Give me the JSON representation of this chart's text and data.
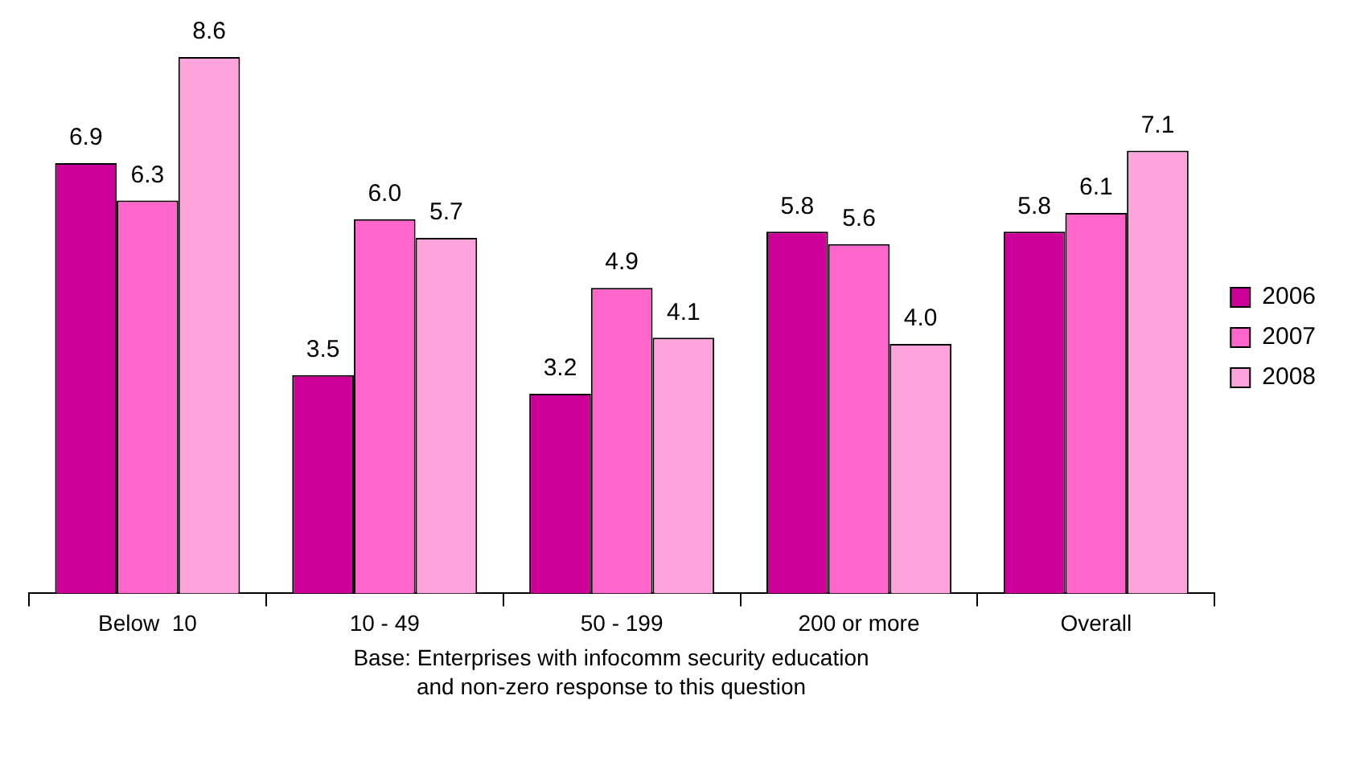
{
  "chart_data": {
    "type": "bar",
    "categories": [
      "Below  10",
      "10 - 49",
      "50 - 199",
      "200 or more",
      "Overall"
    ],
    "series": [
      {
        "name": "2006",
        "color": "#cc0099",
        "values": [
          6.9,
          3.5,
          3.2,
          5.8,
          5.8
        ],
        "value_labels": [
          "6.9",
          "3.5",
          "3.2",
          "5.8",
          "5.8"
        ]
      },
      {
        "name": "2007",
        "color": "#ff66cc",
        "values": [
          6.3,
          6.0,
          4.9,
          5.6,
          6.1
        ],
        "value_labels": [
          "6.3",
          "6.0",
          "4.9",
          "5.6",
          "6.1"
        ]
      },
      {
        "name": "2008",
        "color": "#ffa3dd",
        "values": [
          8.6,
          5.7,
          4.1,
          4.0,
          7.1
        ],
        "value_labels": [
          "8.6",
          "5.7",
          "4.1",
          "4.0",
          "7.1"
        ]
      }
    ],
    "relative": false,
    "legend": "right",
    "grid": false,
    "annotations": [
      "Base: Enterprises with infocomm security education\nand non-zero response to this question"
    ]
  }
}
